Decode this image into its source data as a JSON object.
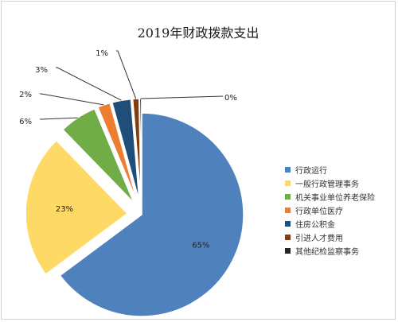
{
  "chart_data": {
    "type": "pie",
    "title": "2019年财政拨款支出",
    "legend_position": "right",
    "slices": [
      {
        "label": "行政运行",
        "value": 65,
        "display": "65%",
        "color": "#4f81bd"
      },
      {
        "label": "一般行政管理事务",
        "value": 23,
        "display": "23%",
        "color": "#ffd966"
      },
      {
        "label": "机关事业单位养老保险",
        "value": 6,
        "display": "6%",
        "color": "#70ad47"
      },
      {
        "label": "行政单位医疗",
        "value": 2,
        "display": "2%",
        "color": "#ed7d31"
      },
      {
        "label": "住房公积金",
        "value": 3,
        "display": "3%",
        "color": "#1f4e79"
      },
      {
        "label": "引进人才费用",
        "value": 1,
        "display": "1%",
        "color": "#843c0c"
      },
      {
        "label": "其他纪检监察事务",
        "value": 0.3,
        "display": "0%",
        "color": "#262626"
      }
    ]
  }
}
